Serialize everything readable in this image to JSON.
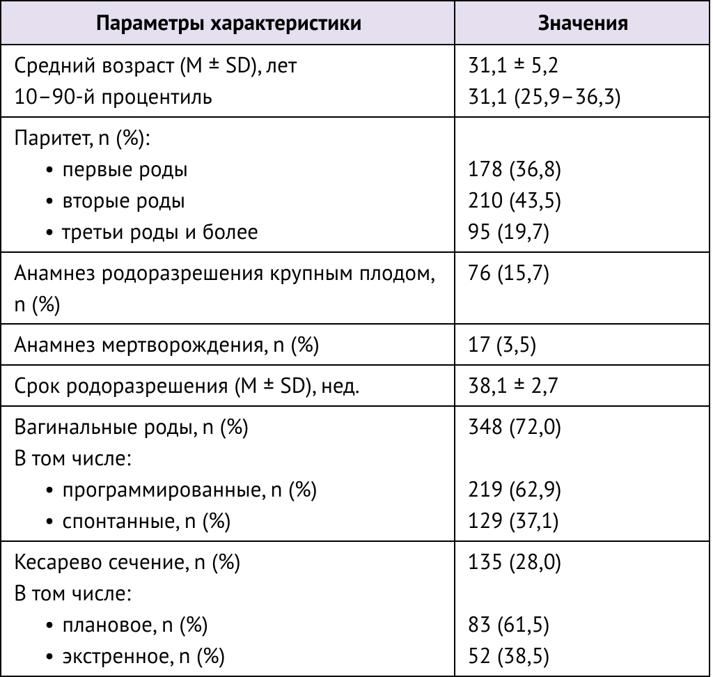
{
  "table": {
    "type": "table",
    "columns": [
      "Параметры характеристики",
      "Значения"
    ],
    "header_bg": "#e5dfef",
    "border_color": "#000000",
    "font_size_pt": 23,
    "groups": [
      {
        "param_lines": [
          {
            "text": "Средний возраст (M ± SD), лет",
            "indent": false
          },
          {
            "text": "10–90-й процентиль",
            "indent": false
          }
        ],
        "value_lines": [
          "31,1 ± 5,2",
          "31,1 (25,9–36,3)"
        ]
      },
      {
        "param_lines": [
          {
            "text": "Паритет, n (%):",
            "indent": false
          },
          {
            "text": "первые роды",
            "indent": true
          },
          {
            "text": "вторые роды",
            "indent": true
          },
          {
            "text": "третьи роды и более",
            "indent": true
          }
        ],
        "value_lines": [
          "",
          "178 (36,8)",
          "210 (43,5)",
          "95 (19,7)"
        ]
      },
      {
        "param_lines": [
          {
            "text": "Анамнез родоразрешения крупным плодом, n (%)",
            "indent": false
          }
        ],
        "value_lines": [
          "76 (15,7)"
        ]
      },
      {
        "param_lines": [
          {
            "text": "Анамнез мертворождения, n (%)",
            "indent": false
          }
        ],
        "value_lines": [
          "17 (3,5)"
        ]
      },
      {
        "param_lines": [
          {
            "text": "Срок родоразрешения (M ± SD), нед.",
            "indent": false
          }
        ],
        "value_lines": [
          "38,1 ± 2,7"
        ]
      },
      {
        "param_lines": [
          {
            "text": "Вагинальные роды, n (%)",
            "indent": false
          },
          {
            "text": "В том числе:",
            "indent": false
          },
          {
            "text": "программированные, n (%)",
            "indent": true
          },
          {
            "text": "спонтанные, n (%)",
            "indent": true
          }
        ],
        "value_lines": [
          "348 (72,0)",
          "",
          "219 (62,9)",
          "129 (37,1)"
        ]
      },
      {
        "param_lines": [
          {
            "text": "Кесарево сечение, n (%)",
            "indent": false
          },
          {
            "text": "В том числе:",
            "indent": false
          },
          {
            "text": "плановое, n (%)",
            "indent": true
          },
          {
            "text": "экстренное, n (%)",
            "indent": true
          }
        ],
        "value_lines": [
          "135 (28,0)",
          "",
          "83 (61,5)",
          "52 (38,5)"
        ]
      }
    ]
  }
}
